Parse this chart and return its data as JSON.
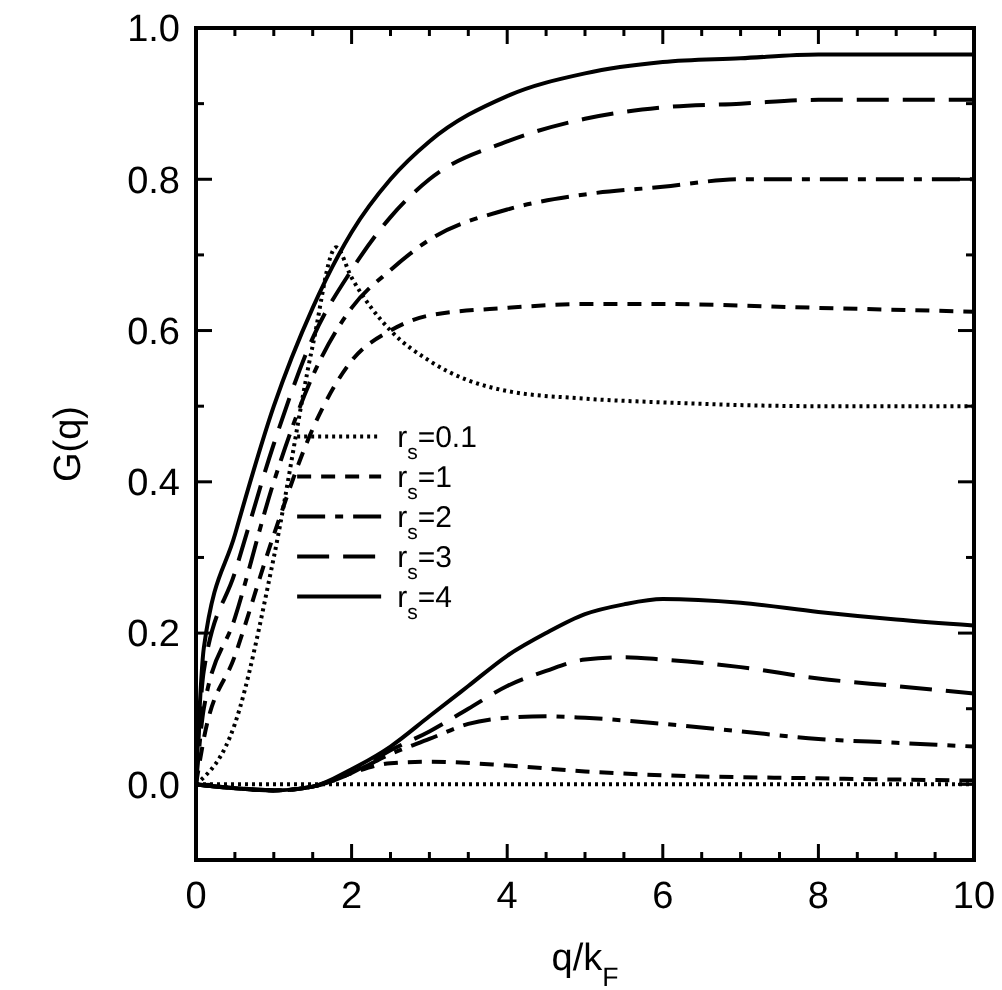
{
  "chart_data": {
    "type": "line",
    "xlabel": "q/k$_{F}$",
    "ylabel": "G(q)",
    "xlim": [
      0,
      10
    ],
    "ylim": [
      -0.1,
      1.0
    ],
    "xticks": [
      0,
      {
        "value": 0.5,
        "label": null
      },
      {
        "value": 1,
        "label": null
      },
      {
        "value": 1.5,
        "label": null
      },
      2,
      {
        "value": 2.5,
        "label": null
      },
      {
        "value": 3,
        "label": null
      },
      {
        "value": 3.5,
        "label": null
      },
      4,
      {
        "value": 4.5,
        "label": null
      },
      {
        "value": 5,
        "label": null
      },
      {
        "value": 5.5,
        "label": null
      },
      6,
      {
        "value": 6.5,
        "label": null
      },
      {
        "value": 7,
        "label": null
      },
      {
        "value": 7.5,
        "label": null
      },
      8,
      {
        "value": 8.5,
        "label": null
      },
      {
        "value": 9,
        "label": null
      },
      {
        "value": 9.5,
        "label": null
      },
      10
    ],
    "yticks": [
      {
        "value": 0,
        "label": "0.0"
      },
      {
        "value": 0.1,
        "label": null
      },
      0.2,
      {
        "value": 0.3,
        "label": null
      },
      0.4,
      {
        "value": 0.5,
        "label": null
      },
      0.6,
      {
        "value": 0.7,
        "label": null
      },
      0.8,
      {
        "value": 0.9,
        "label": null
      },
      {
        "value": 1.0,
        "label": "1.0"
      }
    ],
    "legend": "left",
    "series": [
      {
        "name": "r$_{s}$=0.1",
        "color": "#000000",
        "line_style": "dotted",
        "x": [
          0,
          0.5,
          1,
          1.5,
          1.8,
          2,
          2.5,
          3,
          4,
          5,
          6,
          8,
          10
        ],
        "values": [
          0,
          0.08,
          0.3,
          0.58,
          0.71,
          0.67,
          0.6,
          0.56,
          0.52,
          0.51,
          0.505,
          0.5,
          0.5
        ]
      },
      {
        "name": "r$_{s}$=1",
        "color": "#000000",
        "line_style": "dashed",
        "x": [
          0,
          0.1,
          0.5,
          1,
          1.5,
          2,
          2.5,
          3,
          4,
          5,
          6,
          8,
          10
        ],
        "values": [
          0,
          0.06,
          0.17,
          0.33,
          0.47,
          0.56,
          0.6,
          0.62,
          0.63,
          0.635,
          0.635,
          0.63,
          0.625
        ]
      },
      {
        "name": "r$_{s}$=2",
        "color": "#000000",
        "line_style": "dashed",
        "x": [
          0,
          0.1,
          0.5,
          1,
          1.5,
          2,
          2.5,
          3,
          4,
          5,
          6,
          7,
          10
        ],
        "values": [
          0,
          0.1,
          0.22,
          0.4,
          0.54,
          0.63,
          0.68,
          0.72,
          0.76,
          0.78,
          0.79,
          0.8,
          0.8
        ]
      },
      {
        "name": "r$_{s}$=3",
        "color": "#000000",
        "line_style": "dashed",
        "x": [
          0,
          0.1,
          0.5,
          1,
          1.5,
          2,
          2.5,
          3,
          4,
          5,
          6,
          7,
          8,
          10
        ],
        "values": [
          0,
          0.15,
          0.28,
          0.45,
          0.59,
          0.68,
          0.75,
          0.8,
          0.85,
          0.88,
          0.895,
          0.9,
          0.905,
          0.905
        ]
      },
      {
        "name": "r$_{s}$=4",
        "color": "#000000",
        "line_style": "solid",
        "x": [
          0,
          0.1,
          0.5,
          1,
          1.5,
          2,
          2.5,
          3,
          4,
          5,
          6,
          7,
          8,
          10
        ],
        "values": [
          0,
          0.18,
          0.33,
          0.5,
          0.63,
          0.73,
          0.8,
          0.85,
          0.91,
          0.94,
          0.955,
          0.96,
          0.965,
          0.965
        ]
      },
      {
        "color": "#000000",
        "line_style": "dotted",
        "x": [
          0,
          10
        ],
        "values": [
          0,
          0
        ]
      },
      {
        "color": "#000000",
        "line_style": "dashed",
        "x": [
          0,
          0.5,
          1,
          1.5,
          2,
          2.5,
          3,
          4,
          5,
          6,
          8,
          10
        ],
        "values": [
          0,
          -0.005,
          -0.008,
          -0.003,
          0.015,
          0.028,
          0.03,
          0.025,
          0.017,
          0.012,
          0.008,
          0.005
        ]
      },
      {
        "color": "#000000",
        "line_style": "dashed",
        "x": [
          0,
          0.5,
          1,
          1.5,
          2,
          2.5,
          3,
          3.5,
          4,
          4.5,
          5,
          6,
          7,
          8,
          9,
          10
        ],
        "values": [
          0,
          -0.005,
          -0.008,
          -0.003,
          0.015,
          0.04,
          0.06,
          0.08,
          0.088,
          0.09,
          0.088,
          0.08,
          0.07,
          0.06,
          0.055,
          0.05
        ]
      },
      {
        "color": "#000000",
        "line_style": "dashed",
        "x": [
          0,
          0.5,
          1,
          1.5,
          2,
          2.5,
          3,
          3.5,
          4,
          4.5,
          5,
          5.5,
          6,
          7,
          8,
          9,
          10
        ],
        "values": [
          0,
          -0.005,
          -0.008,
          -0.003,
          0.015,
          0.045,
          0.07,
          0.1,
          0.13,
          0.15,
          0.165,
          0.168,
          0.165,
          0.155,
          0.14,
          0.13,
          0.12
        ]
      },
      {
        "color": "#000000",
        "line_style": "solid",
        "x": [
          0,
          0.5,
          1,
          1.5,
          2,
          2.5,
          3,
          3.5,
          4,
          4.5,
          5,
          5.5,
          6,
          7,
          8,
          9,
          10
        ],
        "values": [
          0,
          -0.005,
          -0.008,
          -0.003,
          0.02,
          0.05,
          0.09,
          0.13,
          0.17,
          0.2,
          0.225,
          0.238,
          0.245,
          0.24,
          0.228,
          0.218,
          0.21
        ]
      }
    ]
  }
}
